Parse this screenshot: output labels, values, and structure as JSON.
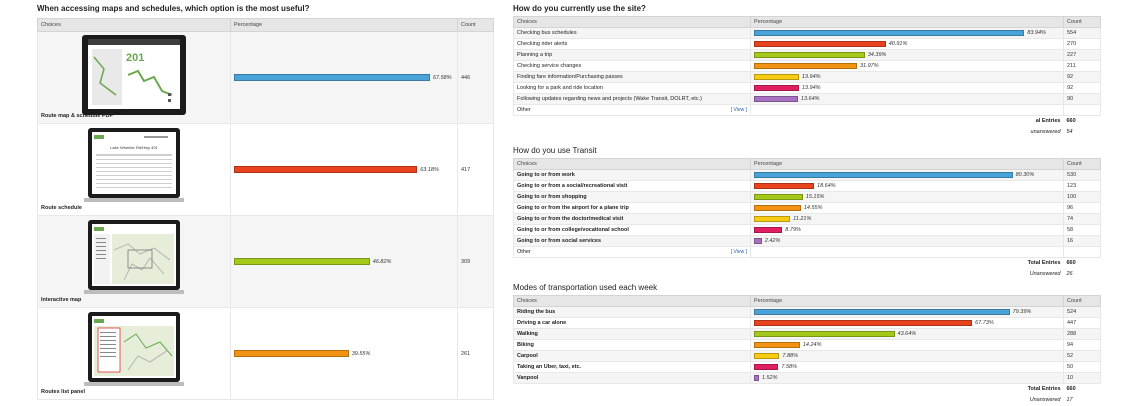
{
  "left": {
    "title": "When accessing maps and schedules, which option is the most useful?",
    "headers": {
      "choices": "Choices",
      "percentage": "Percentage",
      "count": "Count"
    },
    "rows": [
      {
        "label": "Route map & schedule PDF",
        "pct_text": "67.58%",
        "value": 67.58,
        "count": "446",
        "color": "#4aa3d8",
        "thumb_icon": "pdf-map-thumbnail-icon"
      },
      {
        "label": "Route schedule",
        "pct_text": "63.18%",
        "value": 63.18,
        "count": "417",
        "color": "#e8431f",
        "thumb_icon": "schedule-table-thumbnail-icon"
      },
      {
        "label": "Interactive map",
        "pct_text": "46.82%",
        "value": 46.82,
        "count": "309",
        "color": "#a5c91a",
        "thumb_icon": "interactive-map-thumbnail-icon"
      },
      {
        "label": "Routes list panel",
        "pct_text": "39.55%",
        "value": 39.55,
        "count": "261",
        "color": "#f39314",
        "thumb_icon": "routes-list-thumbnail-icon"
      }
    ],
    "thumb_texts": {
      "pdf_number": "201",
      "schedule_heading": "Lake Wheeler Rd/Hwy 401"
    }
  },
  "site": {
    "title": "How do you currently use the site?",
    "headers": {
      "choices": "Choices",
      "percentage": "Percentage",
      "count": "Count"
    },
    "rows": [
      {
        "label": "Checking bus schedules",
        "pct_text": "83.94%",
        "value": 83.94,
        "count": "554",
        "color": "#4aa3d8"
      },
      {
        "label": "Checking rider alerts",
        "pct_text": "40.91%",
        "value": 40.91,
        "count": "270",
        "color": "#e8431f"
      },
      {
        "label": "Planning a trip",
        "pct_text": "34.39%",
        "value": 34.39,
        "count": "227",
        "color": "#a5c91a"
      },
      {
        "label": "Checking service changes",
        "pct_text": "31.97%",
        "value": 31.97,
        "count": "211",
        "color": "#f39314"
      },
      {
        "label": "Finding fare information/Purchasing passes",
        "pct_text": "13.94%",
        "value": 13.94,
        "count": "92",
        "color": "#f7cc12"
      },
      {
        "label": "Looking for a park and ride location",
        "pct_text": "13.94%",
        "value": 13.94,
        "count": "92",
        "color": "#e21e63"
      },
      {
        "label": "Following updates regarding news and projects (Wake Transit, DOLRT, etc.)",
        "pct_text": "13.64%",
        "value": 13.64,
        "count": "90",
        "color": "#a770c0"
      }
    ],
    "other_label": "Other",
    "view_label": "[ View ]",
    "total_label": "al Entries",
    "total_value": "660",
    "unanswered_label": "unanswered",
    "unanswered_value": "54"
  },
  "transit": {
    "title": "How do you use Transit",
    "headers": {
      "choices": "Choices",
      "percentage": "Percentage",
      "count": "Count"
    },
    "rows": [
      {
        "label": "Going to or from work",
        "pct_text": "80.30%",
        "value": 80.3,
        "count": "530",
        "color": "#4aa3d8"
      },
      {
        "label": "Going to or from a social/recreational visit",
        "pct_text": "18.64%",
        "value": 18.64,
        "count": "123",
        "color": "#e8431f"
      },
      {
        "label": "Going to or from shopping",
        "pct_text": "15.15%",
        "value": 15.15,
        "count": "100",
        "color": "#a5c91a"
      },
      {
        "label": "Going to or from the airport for a plane trip",
        "pct_text": "14.55%",
        "value": 14.55,
        "count": "96",
        "color": "#f39314"
      },
      {
        "label": "Going to or from the doctor/medical visit",
        "pct_text": "11.21%",
        "value": 11.21,
        "count": "74",
        "color": "#f7cc12"
      },
      {
        "label": "Going to or from college/vocational school",
        "pct_text": "8.79%",
        "value": 8.79,
        "count": "58",
        "color": "#e21e63"
      },
      {
        "label": "Going to or from social services",
        "pct_text": "2.42%",
        "value": 2.42,
        "count": "16",
        "color": "#a770c0"
      }
    ],
    "other_label": "Other",
    "view_label": "[ View ]",
    "total_label": "Total Entries",
    "total_value": "660",
    "unanswered_label": "Unanswered",
    "unanswered_value": "26"
  },
  "modes": {
    "title": "Modes of transportation used each week",
    "headers": {
      "choices": "Choices",
      "percentage": "Percentage",
      "count": "Count"
    },
    "rows": [
      {
        "label": "Riding the bus",
        "pct_text": "79.39%",
        "value": 79.39,
        "count": "524",
        "color": "#4aa3d8"
      },
      {
        "label": "Driving a car alone",
        "pct_text": "67.73%",
        "value": 67.73,
        "count": "447",
        "color": "#e8431f"
      },
      {
        "label": "Walking",
        "pct_text": "43.64%",
        "value": 43.64,
        "count": "288",
        "color": "#a5c91a"
      },
      {
        "label": "Biking",
        "pct_text": "14.24%",
        "value": 14.24,
        "count": "94",
        "color": "#f39314"
      },
      {
        "label": "Carpool",
        "pct_text": "7.88%",
        "value": 7.88,
        "count": "52",
        "color": "#f7cc12"
      },
      {
        "label": "Taking an Uber, taxi, etc.",
        "pct_text": "7.58%",
        "value": 7.58,
        "count": "50",
        "color": "#e21e63"
      },
      {
        "label": "Vanpool",
        "pct_text": "1.52%",
        "value": 1.52,
        "count": "10",
        "color": "#a770c0"
      }
    ],
    "total_label": "Total Entries",
    "total_value": "660",
    "unanswered_label": "Unanswered",
    "unanswered_value": "17"
  }
}
